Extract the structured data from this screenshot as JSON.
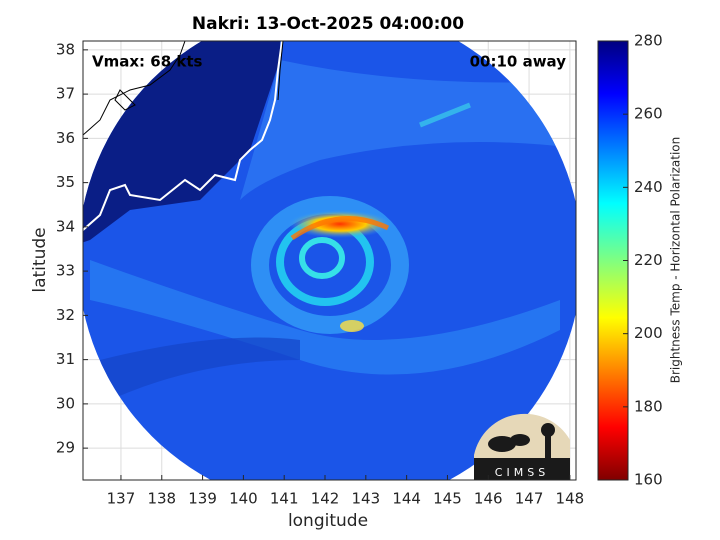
{
  "chart_data": {
    "type": "image",
    "title": "Nakri: 13-Oct-2025 04:00:00",
    "annotations": [
      "Vmax: 68 kts",
      "00:10 away"
    ],
    "xlabel": "longitude",
    "ylabel": "latitude",
    "xlim": [
      136.07,
      148.15
    ],
    "xticks": [
      137,
      138,
      139,
      140,
      141,
      142,
      143,
      144,
      145,
      146,
      147,
      148
    ],
    "ylim": [
      28.28,
      38.2
    ],
    "yticks": [
      29,
      30,
      31,
      32,
      33,
      34,
      35,
      36,
      37,
      38
    ],
    "grid": true,
    "colorbar": {
      "label": "Brightness Temp - Horizontal Polarization",
      "lim": [
        160,
        280
      ],
      "ticks": [
        160,
        180,
        200,
        220,
        240,
        260,
        280
      ]
    }
  },
  "logo_text": "CIMSS"
}
